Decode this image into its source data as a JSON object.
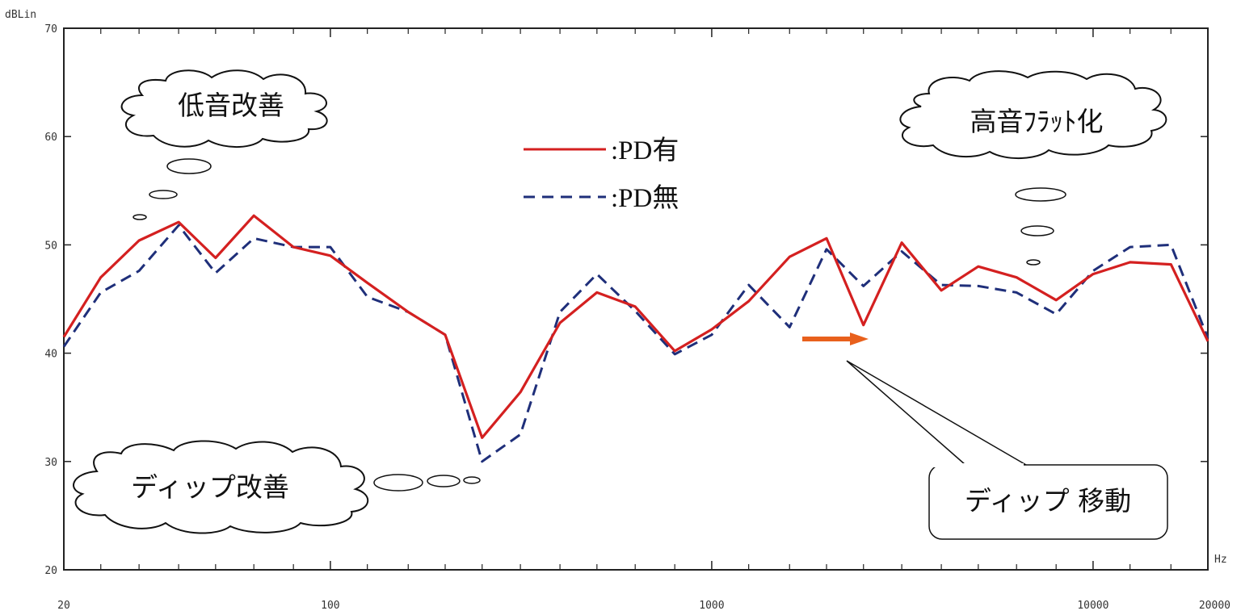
{
  "chart_data": {
    "type": "line",
    "x_scale": "log",
    "xlim": [
      20,
      20000
    ],
    "ylim": [
      20,
      70
    ],
    "ylabel": "dBLin",
    "xunit": "Hz",
    "xticks": [
      20,
      100,
      1000,
      10000,
      20000
    ],
    "xtick_labels": [
      "20",
      "100",
      "1000",
      "10000",
      "20000"
    ],
    "yticks": [
      20,
      30,
      40,
      50,
      60,
      70
    ],
    "ytick_labels": [
      "20",
      "30",
      "40",
      "50",
      "60",
      "70"
    ],
    "grid": false,
    "legend_position": "top-center",
    "series": [
      {
        "name": ":PD有",
        "color": "#d42020",
        "dash": "solid",
        "points": [
          [
            20,
            41.5
          ],
          [
            25,
            47
          ],
          [
            31.5,
            50.4
          ],
          [
            40,
            52.1
          ],
          [
            50,
            48.8
          ],
          [
            63,
            52.7
          ],
          [
            80,
            49.8
          ],
          [
            100,
            49
          ],
          [
            125,
            46.5
          ],
          [
            160,
            43.8
          ],
          [
            200,
            41.7
          ],
          [
            250,
            32.2
          ],
          [
            315,
            36.4
          ],
          [
            400,
            42.8
          ],
          [
            500,
            45.6
          ],
          [
            630,
            44.3
          ],
          [
            800,
            40.2
          ],
          [
            1000,
            42.2
          ],
          [
            1250,
            44.8
          ],
          [
            1600,
            48.9
          ],
          [
            2000,
            50.6
          ],
          [
            2500,
            42.6
          ],
          [
            3150,
            50.2
          ],
          [
            4000,
            45.8
          ],
          [
            5000,
            48
          ],
          [
            6300,
            47
          ],
          [
            8000,
            44.9
          ],
          [
            10000,
            47.3
          ],
          [
            12500,
            48.4
          ],
          [
            16000,
            48.2
          ],
          [
            20000,
            41.1
          ]
        ]
      },
      {
        "name": ":PD無",
        "color": "#1f2f7a",
        "dash": "dashed",
        "points": [
          [
            20,
            40.6
          ],
          [
            25,
            45.6
          ],
          [
            31.5,
            47.6
          ],
          [
            40,
            51.8
          ],
          [
            50,
            47.4
          ],
          [
            63,
            50.6
          ],
          [
            80,
            49.8
          ],
          [
            100,
            49.8
          ],
          [
            125,
            45.2
          ],
          [
            160,
            43.8
          ],
          [
            200,
            41.7
          ],
          [
            250,
            30
          ],
          [
            315,
            32.5
          ],
          [
            400,
            43.8
          ],
          [
            500,
            47.3
          ],
          [
            630,
            43.9
          ],
          [
            800,
            39.9
          ],
          [
            1000,
            41.7
          ],
          [
            1250,
            46.3
          ],
          [
            1600,
            42.4
          ],
          [
            2000,
            49.6
          ],
          [
            2500,
            46.2
          ],
          [
            3150,
            49.4
          ],
          [
            4000,
            46.3
          ],
          [
            5000,
            46.2
          ],
          [
            6300,
            45.6
          ],
          [
            8000,
            43.6
          ],
          [
            10000,
            47.6
          ],
          [
            12500,
            49.8
          ],
          [
            16000,
            50
          ],
          [
            20000,
            41.4
          ]
        ]
      }
    ],
    "annotations": {
      "bass_bubble": "低音改善",
      "dip_bubble": "ディップ改善",
      "treble_bubble": "高音ﾌﾗｯﾄ化",
      "dip_move_box": "ディップ 移動"
    },
    "arrow_color": "#e8601c"
  }
}
